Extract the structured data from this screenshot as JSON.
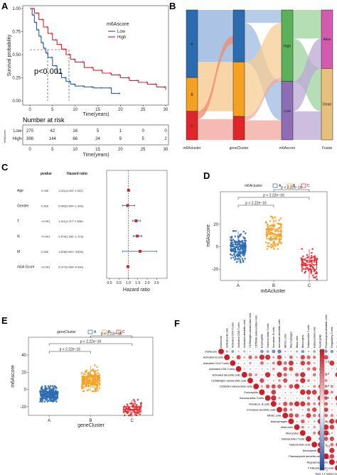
{
  "chart_data": [
    {
      "panel": "A",
      "type": "line",
      "xlabel": "Time(years)",
      "ylabel": "Survival probability",
      "xlim": [
        0,
        30
      ],
      "ylim": [
        0,
        1
      ],
      "x_ticks": [
        "0",
        "5",
        "10",
        "15",
        "20",
        "25",
        "30"
      ],
      "y_ticks": [
        "0.00",
        "0.25",
        "0.50",
        "0.75",
        "1.00"
      ],
      "legend_title": "m6Ascore",
      "annotation": "p<0.001",
      "series": [
        {
          "name": "Low",
          "color": "#2c5fa8",
          "x": [
            0,
            0.5,
            1,
            1.5,
            2,
            2.5,
            3,
            3.5,
            4,
            5,
            6,
            7,
            8,
            9,
            10,
            12,
            14,
            16,
            18,
            20
          ],
          "y": [
            1,
            0.93,
            0.85,
            0.77,
            0.7,
            0.63,
            0.57,
            0.52,
            0.47,
            0.38,
            0.3,
            0.25,
            0.21,
            0.18,
            0.16,
            0.15,
            0.14,
            0.14,
            0.08,
            0.08
          ]
        },
        {
          "name": "High",
          "color": "#d8232a",
          "x": [
            0,
            1,
            2,
            3,
            4,
            5,
            6,
            7,
            8,
            9,
            10,
            12,
            14,
            16,
            18,
            20,
            22,
            24,
            26,
            28,
            30
          ],
          "y": [
            1,
            0.95,
            0.88,
            0.8,
            0.73,
            0.66,
            0.61,
            0.56,
            0.5,
            0.45,
            0.42,
            0.36,
            0.33,
            0.3,
            0.28,
            0.25,
            0.22,
            0.2,
            0.18,
            0.15,
            0.12
          ]
        }
      ],
      "risk_table": {
        "title": "Number at risk",
        "ylabel": "m6Ascore",
        "times": [
          "0",
          "5",
          "10",
          "15",
          "20",
          "25",
          "30"
        ],
        "rows": [
          {
            "name": "Low",
            "color": "#2c5fa8",
            "values": [
              "270",
              "42",
              "16",
              "5",
              "1",
              "0",
              "0"
            ]
          },
          {
            "name": "High",
            "color": "#d8232a",
            "values": [
              "398",
              "144",
              "66",
              "24",
              "9",
              "5",
              "2"
            ]
          }
        ]
      }
    },
    {
      "panel": "B",
      "type": "sankey",
      "axes": [
        "m6Acluster",
        "geneCluster",
        "m6Ascore",
        "Fustat"
      ],
      "nodes": [
        {
          "axis": 0,
          "label": "A",
          "start": 0.0,
          "end": 0.52,
          "color": "#2b6cb0"
        },
        {
          "axis": 0,
          "label": "B",
          "start": 0.52,
          "end": 0.78,
          "color": "#f4a123"
        },
        {
          "axis": 0,
          "label": "C",
          "start": 0.78,
          "end": 1.0,
          "color": "#e0262b"
        },
        {
          "axis": 1,
          "label": "",
          "start": 0.0,
          "end": 0.4,
          "color": "#2b6cb0"
        },
        {
          "axis": 1,
          "label": "",
          "start": 0.4,
          "end": 0.82,
          "color": "#f4a123"
        },
        {
          "axis": 1,
          "label": "",
          "start": 0.82,
          "end": 1.0,
          "color": "#e0262b"
        },
        {
          "axis": 2,
          "label": "High",
          "start": 0.0,
          "end": 0.55,
          "color": "#5bb15a"
        },
        {
          "axis": 2,
          "label": "Low",
          "start": 0.55,
          "end": 1.0,
          "color": "#8d6db3"
        },
        {
          "axis": 3,
          "label": "Alive",
          "start": 0.0,
          "end": 0.45,
          "color": "#d45ab0"
        },
        {
          "axis": 3,
          "label": "Dead",
          "start": 0.45,
          "end": 1.0,
          "color": "#e8c07e"
        }
      ],
      "flows": [
        {
          "from_axis": 0,
          "s0": 0.0,
          "s1": 0.4,
          "t0": 0.0,
          "t1": 0.4,
          "color": "#8fb0dc"
        },
        {
          "from_axis": 0,
          "s0": 0.4,
          "s1": 0.52,
          "t0": 0.4,
          "t1": 0.52,
          "color": "#f5c78a"
        },
        {
          "from_axis": 0,
          "s0": 0.52,
          "s1": 0.78,
          "t0": 0.52,
          "t1": 0.78,
          "color": "#f5c78a"
        },
        {
          "from_axis": 0,
          "s0": 0.78,
          "s1": 0.84,
          "t0": 0.2,
          "t1": 0.26,
          "color": "#ef8a6f"
        },
        {
          "from_axis": 0,
          "s0": 0.84,
          "s1": 1.0,
          "t0": 0.84,
          "t1": 1.0,
          "color": "#f0a39a"
        },
        {
          "from_axis": 1,
          "s0": 0.0,
          "s1": 0.1,
          "t0": 0.0,
          "t1": 0.1,
          "color": "#9fbbe0"
        },
        {
          "from_axis": 1,
          "s0": 0.1,
          "s1": 0.4,
          "t0": 0.55,
          "t1": 0.85,
          "color": "#9fbbe0"
        },
        {
          "from_axis": 1,
          "s0": 0.4,
          "s1": 0.82,
          "t0": 0.1,
          "t1": 0.52,
          "color": "#f6cd93"
        },
        {
          "from_axis": 1,
          "s0": 0.82,
          "s1": 0.85,
          "t0": 0.52,
          "t1": 0.55,
          "color": "#f2a79e"
        },
        {
          "from_axis": 1,
          "s0": 0.85,
          "s1": 1.0,
          "t0": 0.85,
          "t1": 1.0,
          "color": "#f2a79e"
        },
        {
          "from_axis": 2,
          "s0": 0.0,
          "s1": 0.22,
          "t0": 0.0,
          "t1": 0.22,
          "color": "#9dd39c"
        },
        {
          "from_axis": 2,
          "s0": 0.22,
          "s1": 0.55,
          "t0": 0.45,
          "t1": 0.78,
          "color": "#9dd39c"
        },
        {
          "from_axis": 2,
          "s0": 0.55,
          "s1": 0.78,
          "t0": 0.22,
          "t1": 0.45,
          "color": "#bca8d6"
        },
        {
          "from_axis": 2,
          "s0": 0.78,
          "s1": 1.0,
          "t0": 0.78,
          "t1": 1.0,
          "color": "#bca8d6"
        }
      ]
    },
    {
      "panel": "C",
      "type": "forest",
      "col_pvalue": "pvalue",
      "col_hr": "Hazard ratio",
      "xlabel": "Hazard ratio",
      "xlim": [
        0,
        2.5
      ],
      "x_ticks": [
        "0.0",
        "0.5",
        "1.0",
        "1.5",
        "2.0",
        "2.5"
      ],
      "rows": [
        {
          "label": "Age",
          "pvalue": "0.035",
          "hr_text": "1.011(1.001−1.022)",
          "hr": 1.011,
          "lo": 1.001,
          "hi": 1.022
        },
        {
          "label": "Gender",
          "pvalue": "0.816",
          "hr_text": "0.962(0.694−1.333)",
          "hr": 0.962,
          "lo": 0.694,
          "hi": 1.333
        },
        {
          "label": "T",
          "pvalue": "<0.001",
          "hr_text": "1.411(1.217−1.636)",
          "hr": 1.411,
          "lo": 1.217,
          "hi": 1.636
        },
        {
          "label": "N",
          "pvalue": "<0.001",
          "hr_text": "1.474(1.262−1.723)",
          "hr": 1.474,
          "lo": 1.262,
          "hi": 1.723
        },
        {
          "label": "M",
          "pvalue": "0.266",
          "hr_text": "1.626(0.691−3.826)",
          "hr": 1.626,
          "lo": 0.691,
          "hi": 3.826
        },
        {
          "label": "m6A Score",
          "pvalue": "<0.001",
          "hr_text": "0.977(0.964−0.990)",
          "hr": 0.977,
          "lo": 0.964,
          "hi": 0.99
        }
      ]
    },
    {
      "panel": "D",
      "type": "boxplot",
      "legend_title": "m6Acluster",
      "xlabel": "m6Acluster",
      "ylabel": "m6Ascore",
      "ylim": [
        -30,
        30
      ],
      "y_ticks": [
        "-20",
        "0",
        "20"
      ],
      "y_tick_values": [
        -20,
        0,
        20
      ],
      "groups": [
        {
          "name": "A",
          "color": "#2b6cb0",
          "q1": -4,
          "median": 0,
          "q3": 4,
          "min": -14,
          "max": 14,
          "n": 190
        },
        {
          "name": "B",
          "color": "#f4a123",
          "q1": 7,
          "median": 11,
          "q3": 16,
          "min": -2,
          "max": 27,
          "n": 140
        },
        {
          "name": "C",
          "color": "#e0262b",
          "q1": -20,
          "median": -16,
          "q3": -12,
          "min": -29,
          "max": -2,
          "n": 80
        }
      ],
      "comparisons": [
        {
          "from": 0,
          "to": 1,
          "label": "p < 2.22e−16"
        },
        {
          "from": 0,
          "to": 2,
          "label": "p < 2.22e−16"
        },
        {
          "from": 1,
          "to": 2,
          "label": "p < 2.22e−16"
        }
      ]
    },
    {
      "panel": "E",
      "type": "boxplot",
      "legend_title": "geneCluster",
      "xlabel": "geneCluster",
      "ylabel": "m6Ascore",
      "ylim": [
        -30,
        40
      ],
      "y_ticks": [
        "-20",
        "0",
        "20",
        "40"
      ],
      "y_tick_values": [
        -20,
        0,
        20,
        40
      ],
      "groups": [
        {
          "name": "A",
          "color": "#2b6cb0",
          "q1": -8,
          "median": -5,
          "q3": -2,
          "min": -14,
          "max": 4,
          "n": 220
        },
        {
          "name": "B",
          "color": "#f4a123",
          "q1": 7,
          "median": 11,
          "q3": 15,
          "min": -2,
          "max": 28,
          "n": 200
        },
        {
          "name": "C",
          "color": "#e0262b",
          "q1": -26,
          "median": -23,
          "q3": -20,
          "min": -30,
          "max": -12,
          "n": 70
        }
      ],
      "comparisons": [
        {
          "from": 0,
          "to": 1,
          "label": "p < 2.22e−16"
        },
        {
          "from": 0,
          "to": 2,
          "label": "p < 2.22e−16"
        },
        {
          "from": 1,
          "to": 2,
          "label": "p < 2.22e−16"
        }
      ]
    },
    {
      "panel": "F",
      "type": "heatmap",
      "cells": [
        "m6Ascore",
        "Activated B.cells",
        "Activated CD4.T.cells",
        "Activated CD8.T.cells",
        "Activated dendritic.cells",
        "CD56bright.natural.killer.cells",
        "CD56dim.natural.killer.cells",
        "Eosinophils",
        "Gamma.delta.T.cells",
        "Immature. B.cells",
        "Immature.dendritic.cells",
        "MDSC.cells",
        "Macrophages",
        "Mast.cells",
        "Monocytes",
        "Natural.killer.T.cells",
        "Natural.killer.cells",
        "Neutrophils",
        "Plasmacytoid.dendritic.cells",
        "Regulatory.T.cells",
        "T.follicular.helper.cells",
        "Type.1.T.helper.cells",
        "Type.17.T.helper.cells",
        "Type.2.T.helper.cells"
      ],
      "colorbar_ticks": [
        "1",
        "0.8",
        "0.6",
        "0.4",
        "0.2",
        "0",
        "-0.2",
        "-0.4",
        "-0.6",
        "-0.8",
        "-1"
      ]
    }
  ],
  "panels": {
    "a": "A",
    "b": "B",
    "c": "C",
    "d": "D",
    "e": "E",
    "f": "F"
  }
}
